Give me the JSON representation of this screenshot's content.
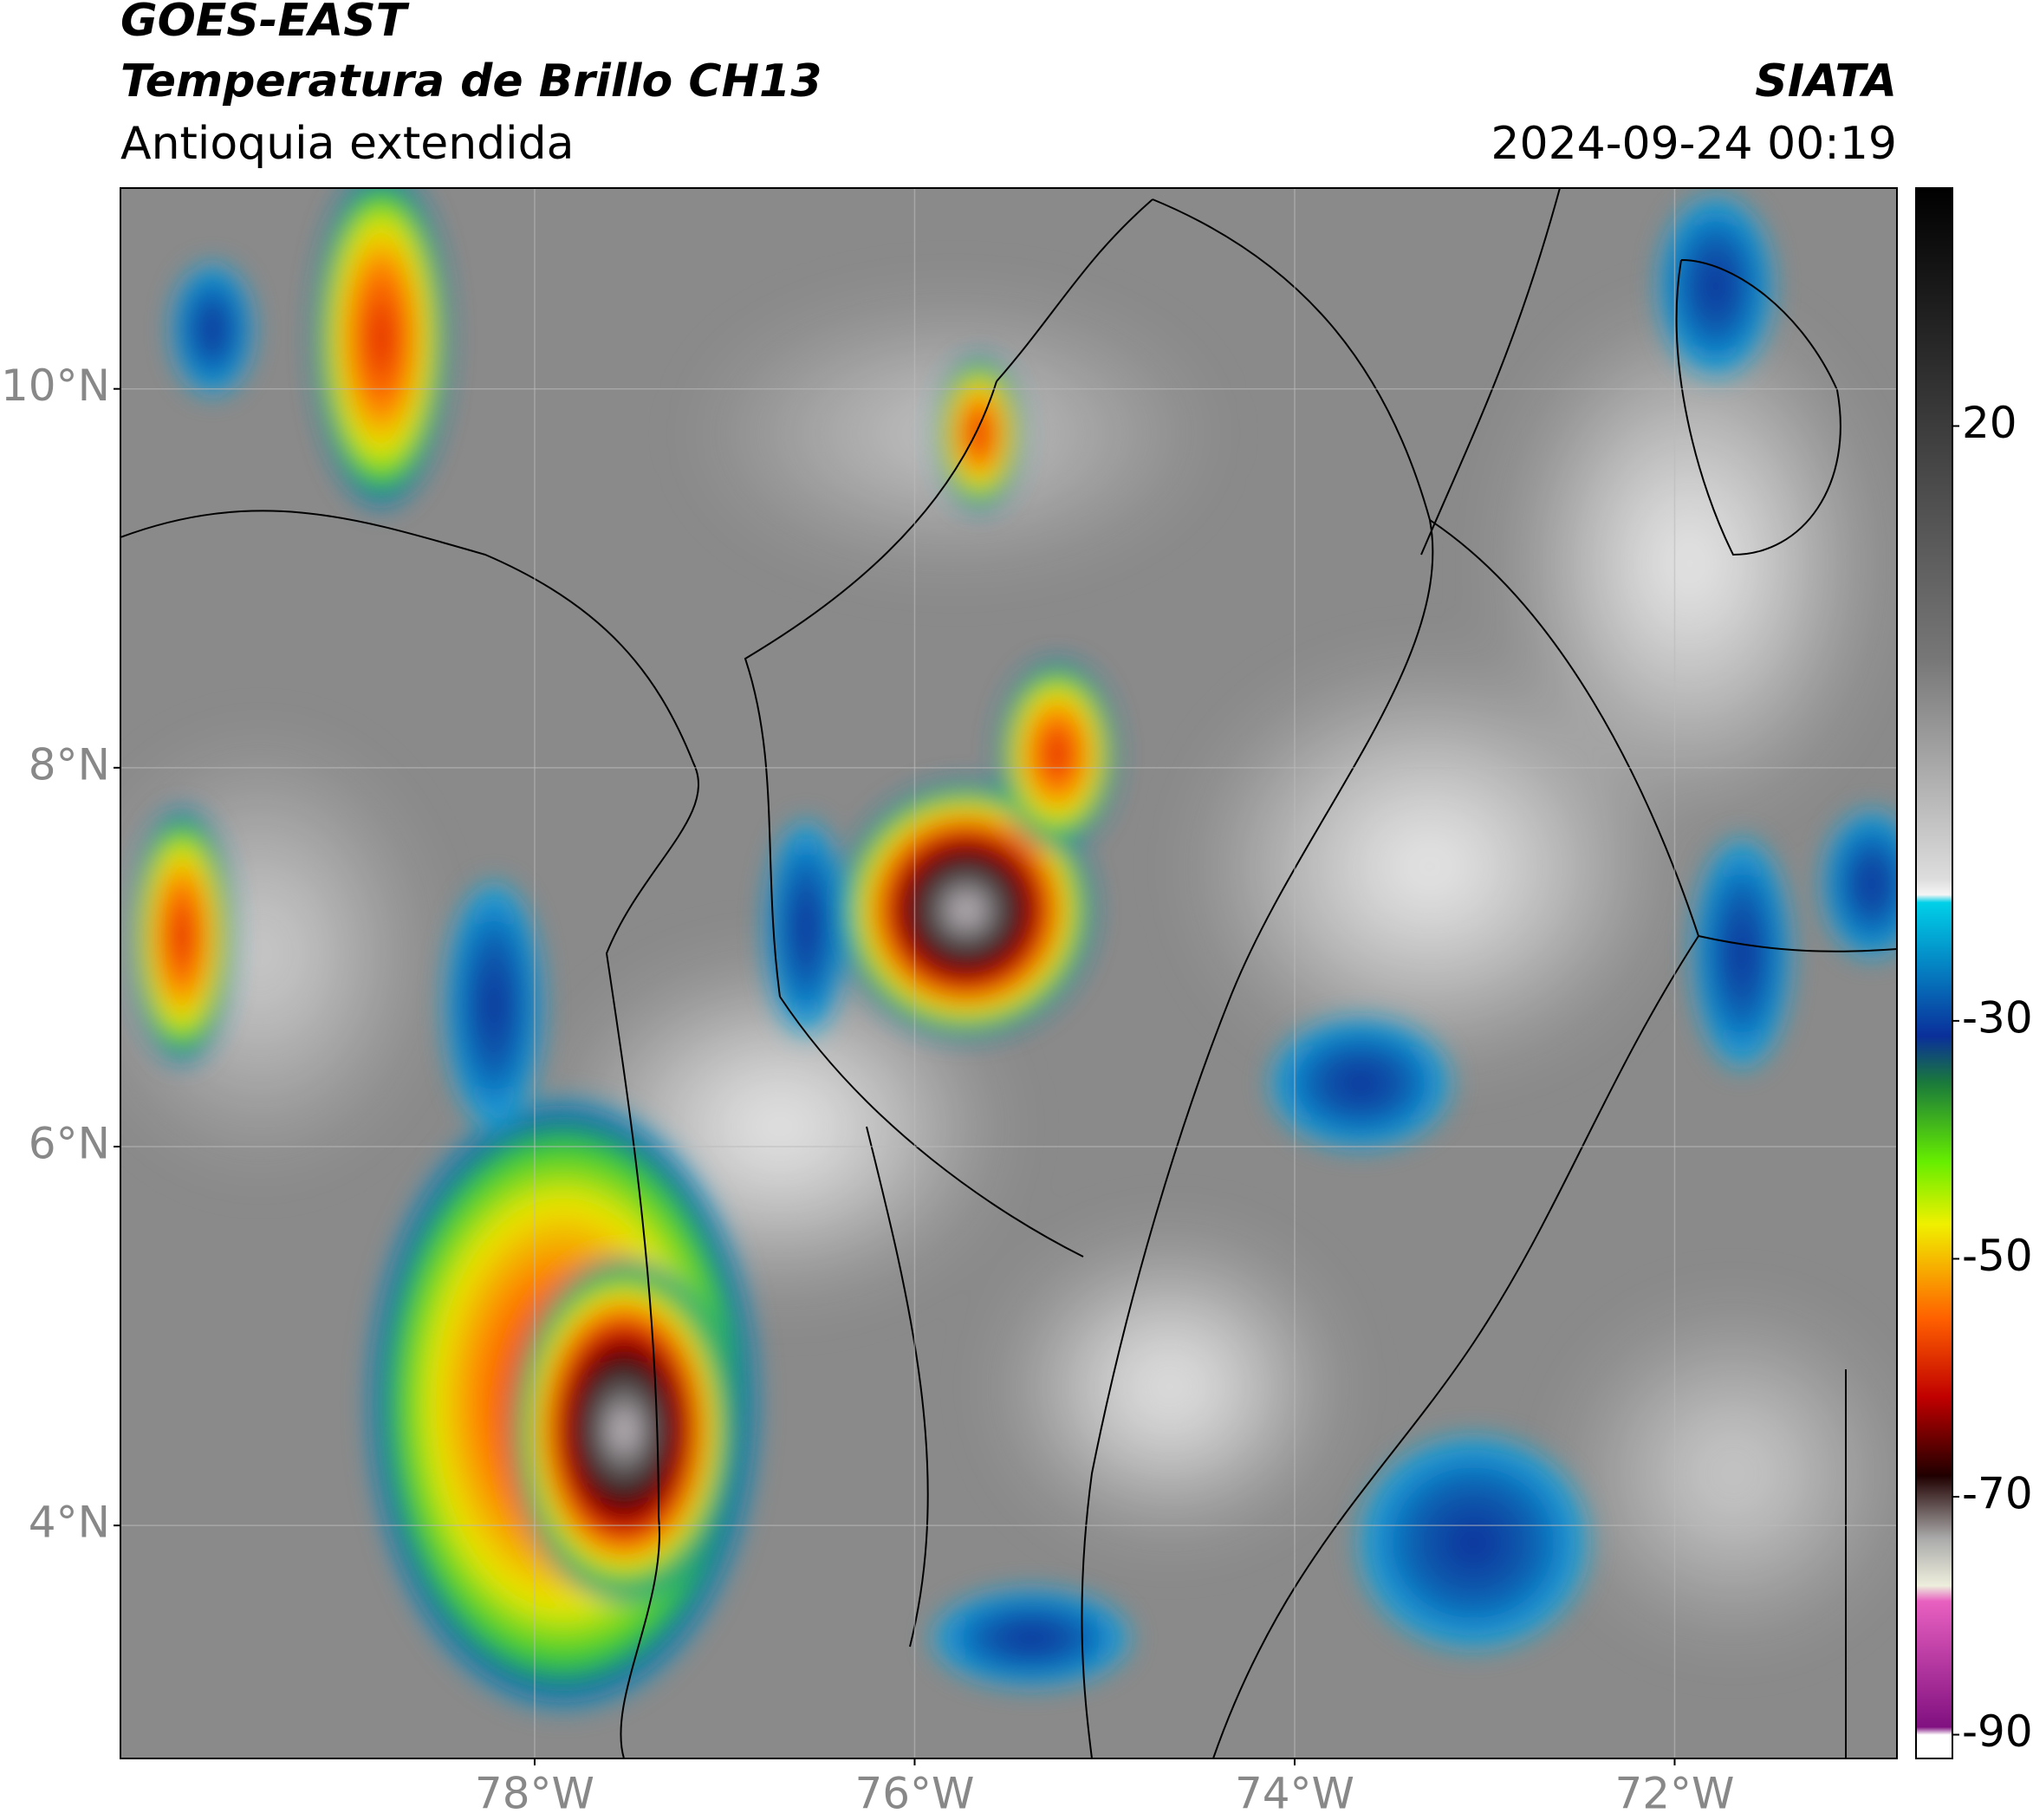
{
  "chart_data": {
    "type": "map",
    "title": "GOES-EAST",
    "subtitle": "Temperatura de Brillo CH13",
    "region": "Antioquia extendida",
    "source": "SIATA",
    "datetime": "2024-09-24 00:19",
    "xlim": [
      -80.18,
      -70.83
    ],
    "ylim": [
      2.77,
      11.06
    ],
    "xticks": [
      {
        "value": -78,
        "label": "78°W"
      },
      {
        "value": -76,
        "label": "76°W"
      },
      {
        "value": -74,
        "label": "74°W"
      },
      {
        "value": -72,
        "label": "72°W"
      }
    ],
    "yticks": [
      {
        "value": 4,
        "label": "4°N"
      },
      {
        "value": 6,
        "label": "6°N"
      },
      {
        "value": 8,
        "label": "8°N"
      },
      {
        "value": 10,
        "label": "10°N"
      }
    ],
    "grid": true,
    "colorbar": {
      "lim": [
        -92,
        40
      ],
      "ticks": [
        20,
        -30,
        -50,
        -70,
        -90
      ]
    }
  }
}
